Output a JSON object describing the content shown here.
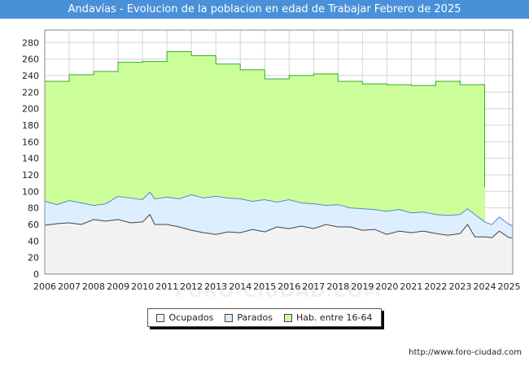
{
  "chart_data": {
    "type": "area",
    "title": "Andavías - Evolucion de la poblacion en edad de Trabajar Febrero de 2025",
    "xlabel": "",
    "ylabel": "",
    "ylim": [
      0,
      295
    ],
    "yticks": [
      0,
      20,
      40,
      60,
      80,
      100,
      120,
      140,
      160,
      180,
      200,
      220,
      240,
      260,
      280
    ],
    "xlim": [
      2006,
      2025.15
    ],
    "xticks": [
      2006,
      2007,
      2008,
      2009,
      2010,
      2011,
      2012,
      2013,
      2014,
      2015,
      2016,
      2017,
      2018,
      2019,
      2020,
      2021,
      2022,
      2023,
      2024,
      2025
    ],
    "grid": true,
    "legend_position": "bottom-center",
    "watermark": "FORO-CIUDAD.COM",
    "source": "http://www.foro-ciudad.com",
    "series": [
      {
        "name": "Hab. entre 16-64",
        "color": "#ccff99",
        "line_color": "#33aa33",
        "step_years": [
          2006,
          2007,
          2008,
          2009,
          2010,
          2011,
          2012,
          2013,
          2014,
          2015,
          2016,
          2017,
          2018,
          2019,
          2020,
          2021,
          2022,
          2023
        ],
        "step_values": [
          233,
          241,
          245,
          256,
          257,
          269,
          264,
          254,
          247,
          236,
          240,
          242,
          233,
          230,
          229,
          228,
          233,
          229
        ],
        "end_year": 2024,
        "end_value": 105
      },
      {
        "name": "Parados",
        "color": "#ddeeff",
        "line_color": "#5588cc",
        "x": [
          2006,
          2006.5,
          2007,
          2007.5,
          2008,
          2008.5,
          2009,
          2009.5,
          2010,
          2010.3,
          2010.5,
          2011,
          2011.5,
          2012,
          2012.5,
          2013,
          2013.5,
          2014,
          2014.5,
          2015,
          2015.5,
          2016,
          2016.5,
          2017,
          2017.5,
          2018,
          2018.5,
          2019,
          2019.5,
          2020,
          2020.5,
          2021,
          2021.5,
          2022,
          2022.5,
          2023,
          2023.3,
          2023.6,
          2024,
          2024.3,
          2024.6,
          2025,
          2025.15
        ],
        "values": [
          88,
          84,
          89,
          86,
          83,
          85,
          94,
          92,
          90,
          99,
          91,
          93,
          91,
          96,
          92,
          94,
          92,
          91,
          88,
          90,
          87,
          90,
          86,
          85,
          83,
          84,
          80,
          79,
          78,
          76,
          78,
          74,
          75,
          72,
          71,
          72,
          79,
          72,
          63,
          60,
          69,
          60,
          58
        ]
      },
      {
        "name": "Ocupados",
        "color": "#f2f2f2",
        "line_color": "#444444",
        "x": [
          2006,
          2006.5,
          2007,
          2007.5,
          2008,
          2008.5,
          2009,
          2009.5,
          2010,
          2010.3,
          2010.5,
          2011,
          2011.5,
          2012,
          2012.5,
          2013,
          2013.5,
          2014,
          2014.5,
          2015,
          2015.5,
          2016,
          2016.5,
          2017,
          2017.5,
          2018,
          2018.5,
          2019,
          2019.5,
          2020,
          2020.5,
          2021,
          2021.5,
          2022,
          2022.5,
          2023,
          2023.3,
          2023.6,
          2024,
          2024.3,
          2024.6,
          2025,
          2025.15
        ],
        "values": [
          59,
          61,
          62,
          60,
          66,
          64,
          66,
          62,
          63,
          72,
          60,
          60,
          57,
          53,
          50,
          48,
          51,
          50,
          54,
          51,
          57,
          55,
          58,
          55,
          60,
          57,
          57,
          53,
          54,
          48,
          52,
          50,
          52,
          49,
          47,
          49,
          60,
          45,
          45,
          44,
          52,
          44,
          44
        ]
      }
    ]
  }
}
